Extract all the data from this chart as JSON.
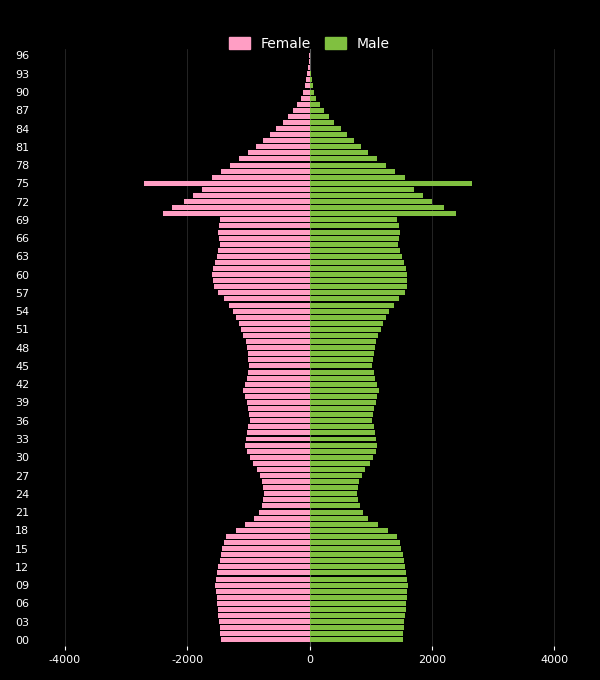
{
  "female_color": "#FF9EC4",
  "male_color": "#80C040",
  "background_color": "#000000",
  "text_color": "#FFFFFF",
  "grid_color": "#808080",
  "xlim": [
    -4500,
    4500
  ],
  "xticks": [
    -4000,
    -2000,
    0,
    2000,
    4000
  ],
  "ages": [
    0,
    1,
    2,
    3,
    4,
    5,
    6,
    7,
    8,
    9,
    10,
    11,
    12,
    13,
    14,
    15,
    16,
    17,
    18,
    19,
    20,
    21,
    22,
    23,
    24,
    25,
    26,
    27,
    28,
    29,
    30,
    31,
    32,
    33,
    34,
    35,
    36,
    37,
    38,
    39,
    40,
    41,
    42,
    43,
    44,
    45,
    46,
    47,
    48,
    49,
    50,
    51,
    52,
    53,
    54,
    55,
    56,
    57,
    58,
    59,
    60,
    61,
    62,
    63,
    64,
    65,
    66,
    67,
    68,
    69,
    70,
    71,
    72,
    73,
    74,
    75,
    76,
    77,
    78,
    79,
    80,
    81,
    82,
    83,
    84,
    85,
    86,
    87,
    88,
    89,
    90,
    91,
    92,
    93,
    94,
    95,
    96
  ],
  "female": [
    1450,
    1460,
    1470,
    1480,
    1490,
    1500,
    1510,
    1520,
    1530,
    1540,
    1530,
    1510,
    1490,
    1470,
    1450,
    1430,
    1400,
    1360,
    1200,
    1050,
    900,
    820,
    780,
    760,
    750,
    760,
    780,
    810,
    860,
    920,
    980,
    1020,
    1050,
    1040,
    1020,
    1000,
    980,
    990,
    1010,
    1030,
    1060,
    1080,
    1050,
    1030,
    1010,
    990,
    1000,
    1010,
    1020,
    1040,
    1080,
    1120,
    1160,
    1200,
    1250,
    1320,
    1400,
    1500,
    1560,
    1580,
    1600,
    1580,
    1550,
    1520,
    1490,
    1460,
    1480,
    1490,
    1480,
    1460,
    2400,
    2250,
    2050,
    1900,
    1750,
    2700,
    1600,
    1450,
    1300,
    1150,
    1000,
    880,
    760,
    650,
    550,
    440,
    360,
    270,
    200,
    140,
    100,
    70,
    50,
    35,
    22,
    12,
    6
  ],
  "male": [
    1520,
    1530,
    1540,
    1550,
    1560,
    1570,
    1580,
    1590,
    1600,
    1610,
    1600,
    1580,
    1560,
    1540,
    1520,
    1500,
    1470,
    1430,
    1280,
    1120,
    960,
    870,
    820,
    790,
    780,
    790,
    810,
    850,
    910,
    980,
    1040,
    1080,
    1100,
    1090,
    1070,
    1050,
    1020,
    1030,
    1060,
    1080,
    1110,
    1130,
    1100,
    1070,
    1050,
    1020,
    1040,
    1050,
    1070,
    1090,
    1120,
    1160,
    1200,
    1250,
    1300,
    1380,
    1460,
    1560,
    1600,
    1600,
    1600,
    1570,
    1540,
    1510,
    1480,
    1440,
    1460,
    1470,
    1460,
    1430,
    2400,
    2200,
    2000,
    1850,
    1700,
    2650,
    1560,
    1400,
    1250,
    1100,
    960,
    840,
    720,
    610,
    510,
    400,
    320,
    230,
    170,
    110,
    75,
    50,
    33,
    20,
    12,
    6,
    3
  ]
}
